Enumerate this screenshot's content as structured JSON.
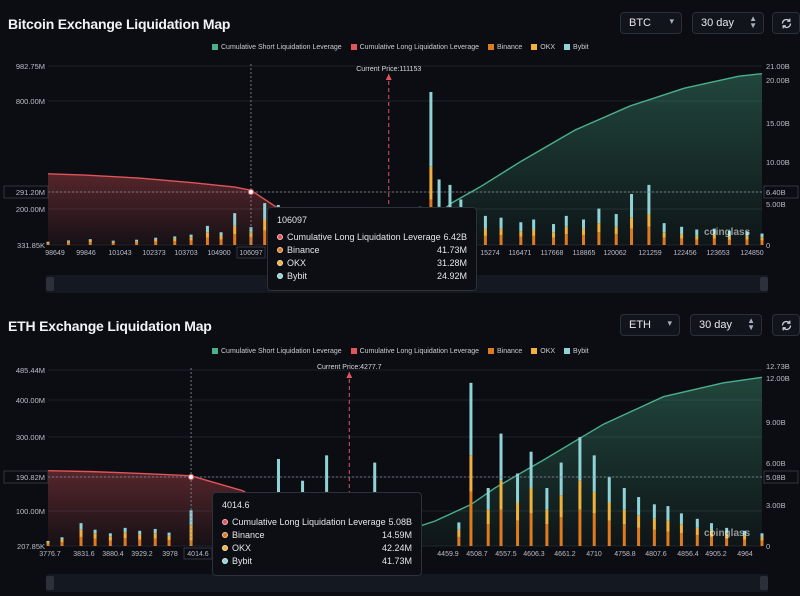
{
  "colors": {
    "short": "#49b08a",
    "long": "#e0545a",
    "binance": "#e07a1e",
    "okx": "#f2b13a",
    "bybit": "#8fd3d6",
    "background": "#0b0d12"
  },
  "btc": {
    "title": "Bitcoin Exchange Liquidation Map",
    "coin_select": "BTC",
    "period_select": "30 day",
    "refresh_icon": "refresh-icon",
    "legend": [
      "Cumulative Short Liquidation Leverage",
      "Cumulative Long Liquidation Leverage",
      "Binance",
      "OKX",
      "Bybit"
    ],
    "current_price_label": "Current Price:111153",
    "y_left_ticks": [
      "982.75M",
      "800.00M",
      "291.20M",
      "200.00M",
      "331.85K"
    ],
    "y_right_ticks": [
      "21.00B",
      "20.00B",
      "15.00B",
      "10.00B",
      "6.40B",
      "5.00B",
      "0"
    ],
    "x_ticks_left": [
      "98649",
      "99846",
      "101043",
      "102373",
      "103703",
      "104900",
      "106097"
    ],
    "x_ticks_right": [
      "15274",
      "116471",
      "117668",
      "118865",
      "120062",
      "121259",
      "122456",
      "123653",
      "124850"
    ],
    "crosshair_y_label_left": "291.20M",
    "crosshair_y_label_right": "6.40B",
    "tooltip": {
      "title": "106097",
      "rows": [
        {
          "label": "Cumulative Long Liquidation Leverage",
          "value": "6.42B"
        },
        {
          "label": "Binance",
          "value": "41.73M"
        },
        {
          "label": "OKX",
          "value": "31.28M"
        },
        {
          "label": "Bybit",
          "value": "24.92M"
        }
      ]
    },
    "watermark": "coinglass"
  },
  "eth": {
    "title": "ETH Exchange Liquidation Map",
    "coin_select": "ETH",
    "period_select": "30 day",
    "refresh_icon": "refresh-icon",
    "legend": [
      "Cumulative Short Liquidation Leverage",
      "Cumulative Long Liquidation Leverage",
      "Binance",
      "OKX",
      "Bybit"
    ],
    "current_price_label": "Current Price:4277.7",
    "y_left_ticks": [
      "485.44M",
      "400.00M",
      "300.00M",
      "190.82M",
      "100.00M",
      "207.85K"
    ],
    "y_right_ticks": [
      "12.73B",
      "12.00B",
      "9.00B",
      "6.00B",
      "5.08B",
      "3.00B",
      "0"
    ],
    "x_ticks_left": [
      "3776.7",
      "3831.6",
      "3880.4",
      "3929.2",
      "3978",
      "4014.6"
    ],
    "x_ticks_right": [
      "4459.9",
      "4508.7",
      "4557.5",
      "4606.3",
      "4661.2",
      "4710",
      "4758.8",
      "4807.6",
      "4856.4",
      "4905.2",
      "4964"
    ],
    "crosshair_y_label_left": "190.82M",
    "crosshair_y_label_right": "5.08B",
    "tooltip": {
      "title": "4014.6",
      "rows": [
        {
          "label": "Cumulative Long Liquidation Leverage",
          "value": "5.08B"
        },
        {
          "label": "Binance",
          "value": "14.59M"
        },
        {
          "label": "OKX",
          "value": "42.24M"
        },
        {
          "label": "Bybit",
          "value": "41.73M"
        }
      ]
    },
    "watermark": "coinglass"
  },
  "chart_data": [
    {
      "type": "bar",
      "title": "Bitcoin Exchange Liquidation Map",
      "x_range": [
        98649,
        124850
      ],
      "ylim_left": [
        0,
        982750000
      ],
      "ylim_right": [
        0,
        21000000000
      ],
      "current_price": 111153,
      "crosshair_x": 106097,
      "long_cumulative": {
        "name": "Cumulative Long Liquidation Leverage",
        "x": [
          98649,
          100000,
          102000,
          104000,
          105500,
          106097,
          107000,
          108500,
          110000,
          111153
        ],
        "y": [
          8350000000.0,
          8200000000.0,
          7850000000.0,
          7300000000.0,
          6800000000.0,
          6420000000.0,
          4500000000.0,
          2200000000.0,
          600000000.0,
          0
        ]
      },
      "short_cumulative": {
        "name": "Cumulative Short Liquidation Leverage",
        "x": [
          111153,
          112500,
          113500,
          114500,
          116000,
          118000,
          120000,
          122000,
          124000,
          124850
        ],
        "y": [
          0,
          2500000000.0,
          5000000000.0,
          6800000000.0,
          9800000000.0,
          13500000000.0,
          16300000000.0,
          18400000000.0,
          19800000000.0,
          20100000000.0
        ]
      },
      "bars": [
        {
          "x": 98649,
          "binance": 8000000.0,
          "okx": 6000000.0,
          "bybit": 4000000.0
        },
        {
          "x": 99400,
          "binance": 12000000.0,
          "okx": 8000000.0,
          "bybit": 5000000.0
        },
        {
          "x": 100200,
          "binance": 15000000.0,
          "okx": 10000000.0,
          "bybit": 7000000.0
        },
        {
          "x": 101043,
          "binance": 10000000.0,
          "okx": 8000000.0,
          "bybit": 6000000.0
        },
        {
          "x": 101900,
          "binance": 12000000.0,
          "okx": 9000000.0,
          "bybit": 8000000.0
        },
        {
          "x": 102600,
          "binance": 18000000.0,
          "okx": 12000000.0,
          "bybit": 10000000.0
        },
        {
          "x": 103300,
          "binance": 20000000.0,
          "okx": 15000000.0,
          "bybit": 12000000.0
        },
        {
          "x": 103900,
          "binance": 25000000.0,
          "okx": 18000000.0,
          "bybit": 14000000.0
        },
        {
          "x": 104500,
          "binance": 40000000.0,
          "okx": 30000000.0,
          "bybit": 35000000.0
        },
        {
          "x": 105000,
          "binance": 30000000.0,
          "okx": 22000000.0,
          "bybit": 18000000.0
        },
        {
          "x": 105500,
          "binance": 60000000.0,
          "okx": 45000000.0,
          "bybit": 70000000.0
        },
        {
          "x": 106097,
          "binance": 41730000.0,
          "okx": 31280000.0,
          "bybit": 24920000.0
        },
        {
          "x": 106600,
          "binance": 80000000.0,
          "okx": 60000000.0,
          "bybit": 90000000.0
        },
        {
          "x": 107100,
          "binance": 70000000.0,
          "okx": 50000000.0,
          "bybit": 100000000.0
        },
        {
          "x": 107600,
          "binance": 40000000.0,
          "okx": 30000000.0,
          "bybit": 50000000.0
        },
        {
          "x": 108300,
          "binance": 50000000.0,
          "okx": 35000000.0,
          "bybit": 60000000.0
        },
        {
          "x": 109000,
          "binance": 45000000.0,
          "okx": 30000000.0,
          "bybit": 55000000.0
        },
        {
          "x": 109700,
          "binance": 55000000.0,
          "okx": 40000000.0,
          "bybit": 60000000.0
        },
        {
          "x": 110400,
          "binance": 40000000.0,
          "okx": 25000000.0,
          "bybit": 40000000.0
        },
        {
          "x": 111700,
          "binance": 60000000.0,
          "okx": 40000000.0,
          "bybit": 50000000.0
        },
        {
          "x": 112300,
          "binance": 80000000.0,
          "okx": 60000000.0,
          "bybit": 70000000.0
        },
        {
          "x": 112700,
          "binance": 250000000.0,
          "okx": 180000000.0,
          "bybit": 410000000.0
        },
        {
          "x": 113000,
          "binance": 120000000.0,
          "okx": 90000000.0,
          "bybit": 150000000.0
        },
        {
          "x": 113400,
          "binance": 100000000.0,
          "okx": 70000000.0,
          "bybit": 160000000.0
        },
        {
          "x": 113800,
          "binance": 80000000.0,
          "okx": 60000000.0,
          "bybit": 110000000.0
        },
        {
          "x": 114200,
          "binance": 60000000.0,
          "okx": 40000000.0,
          "bybit": 80000000.0
        },
        {
          "x": 114700,
          "binance": 50000000.0,
          "okx": 40000000.0,
          "bybit": 70000000.0
        },
        {
          "x": 115274,
          "binance": 55000000.0,
          "okx": 35000000.0,
          "bybit": 60000000.0
        },
        {
          "x": 116000,
          "binance": 45000000.0,
          "okx": 30000000.0,
          "bybit": 50000000.0
        },
        {
          "x": 116471,
          "binance": 50000000.0,
          "okx": 35000000.0,
          "bybit": 55000000.0
        },
        {
          "x": 117200,
          "binance": 40000000.0,
          "okx": 30000000.0,
          "bybit": 45000000.0
        },
        {
          "x": 117668,
          "binance": 60000000.0,
          "okx": 40000000.0,
          "bybit": 60000000.0
        },
        {
          "x": 118300,
          "binance": 55000000.0,
          "okx": 35000000.0,
          "bybit": 50000000.0
        },
        {
          "x": 118865,
          "binance": 70000000.0,
          "okx": 50000000.0,
          "bybit": 80000000.0
        },
        {
          "x": 119500,
          "binance": 60000000.0,
          "okx": 40000000.0,
          "bybit": 70000000.0
        },
        {
          "x": 120062,
          "binance": 90000000.0,
          "okx": 60000000.0,
          "bybit": 130000000.0
        },
        {
          "x": 120700,
          "binance": 100000000.0,
          "okx": 70000000.0,
          "bybit": 160000000.0
        },
        {
          "x": 121259,
          "binance": 40000000.0,
          "okx": 30000000.0,
          "bybit": 50000000.0
        },
        {
          "x": 121900,
          "binance": 35000000.0,
          "okx": 25000000.0,
          "bybit": 40000000.0
        },
        {
          "x": 122456,
          "binance": 30000000.0,
          "okx": 20000000.0,
          "bybit": 35000000.0
        },
        {
          "x": 123100,
          "binance": 35000000.0,
          "okx": 25000000.0,
          "bybit": 30000000.0
        },
        {
          "x": 123653,
          "binance": 28000000.0,
          "okx": 20000000.0,
          "bybit": 30000000.0
        },
        {
          "x": 124300,
          "binance": 30000000.0,
          "okx": 20000000.0,
          "bybit": 25000000.0
        },
        {
          "x": 124850,
          "binance": 25000000.0,
          "okx": 18000000.0,
          "bybit": 20000000.0
        }
      ]
    },
    {
      "type": "bar",
      "title": "ETH Exchange Liquidation Map",
      "x_range": [
        3776.7,
        4964
      ],
      "ylim_left": [
        0,
        485440000
      ],
      "ylim_right": [
        0,
        12730000000
      ],
      "current_price": 4277.7,
      "crosshair_x": 4014.6,
      "long_cumulative": {
        "name": "Cumulative Long Liquidation Leverage",
        "x": [
          3776.7,
          3850,
          3930,
          3990,
          4014.6,
          4100,
          4180,
          4250,
          4277.7
        ],
        "y": [
          5450000000.0,
          5380000000.0,
          5250000000.0,
          5130000000.0,
          5080000000.0,
          4000000000.0,
          2000000000.0,
          500000000.0,
          0
        ]
      },
      "short_cumulative": {
        "name": "Cumulative Short Liquidation Leverage",
        "x": [
          4277.7,
          4350,
          4420,
          4480,
          4520,
          4600,
          4700,
          4800,
          4900,
          4964
        ],
        "y": [
          0,
          800000000.0,
          1800000000.0,
          3000000000.0,
          4200000000.0,
          6200000000.0,
          8800000000.0,
          10800000000.0,
          11800000000.0,
          12200000000.0
        ]
      },
      "bars": [
        {
          "x": 3776.7,
          "binance": 6000000.0,
          "okx": 5000000.0,
          "bybit": 3000000.0
        },
        {
          "x": 3800,
          "binance": 10000000.0,
          "okx": 8000000.0,
          "bybit": 6000000.0
        },
        {
          "x": 3831.6,
          "binance": 25000000.0,
          "okx": 20000000.0,
          "bybit": 18000000.0
        },
        {
          "x": 3855,
          "binance": 20000000.0,
          "okx": 15000000.0,
          "bybit": 10000000.0
        },
        {
          "x": 3880.4,
          "binance": 15000000.0,
          "okx": 12000000.0,
          "bybit": 8000000.0
        },
        {
          "x": 3905,
          "binance": 22000000.0,
          "okx": 16000000.0,
          "bybit": 12000000.0
        },
        {
          "x": 3929.2,
          "binance": 18000000.0,
          "okx": 14000000.0,
          "bybit": 10000000.0
        },
        {
          "x": 3955,
          "binance": 20000000.0,
          "okx": 15000000.0,
          "bybit": 12000000.0
        },
        {
          "x": 3978,
          "binance": 16000000.0,
          "okx": 12000000.0,
          "bybit": 9000000.0
        },
        {
          "x": 4014.6,
          "binance": 14590000.0,
          "okx": 42240000.0,
          "bybit": 41730000.0
        },
        {
          "x": 4060,
          "binance": 20000000.0,
          "okx": 15000000.0,
          "bybit": 15000000.0
        },
        {
          "x": 4120,
          "binance": 40000000.0,
          "okx": 30000000.0,
          "bybit": 50000000.0
        },
        {
          "x": 4160,
          "binance": 80000000.0,
          "okx": 60000000.0,
          "bybit": 100000000.0
        },
        {
          "x": 4200,
          "binance": 60000000.0,
          "okx": 40000000.0,
          "bybit": 80000000.0
        },
        {
          "x": 4240,
          "binance": 90000000.0,
          "okx": 60000000.0,
          "bybit": 100000000.0
        },
        {
          "x": 4320,
          "binance": 80000000.0,
          "okx": 60000000.0,
          "bybit": 90000000.0
        },
        {
          "x": 4380,
          "binance": 20000000.0,
          "okx": 15000000.0,
          "bybit": 15000000.0
        },
        {
          "x": 4459.9,
          "binance": 25000000.0,
          "okx": 20000000.0,
          "bybit": 20000000.0
        },
        {
          "x": 4480,
          "binance": 150000000.0,
          "okx": 100000000.0,
          "bybit": 200000000.0
        },
        {
          "x": 4508.7,
          "binance": 60000000.0,
          "okx": 40000000.0,
          "bybit": 60000000.0
        },
        {
          "x": 4530,
          "binance": 100000000.0,
          "okx": 80000000.0,
          "bybit": 130000000.0
        },
        {
          "x": 4557.5,
          "binance": 70000000.0,
          "okx": 50000000.0,
          "bybit": 80000000.0
        },
        {
          "x": 4580,
          "binance": 90000000.0,
          "okx": 70000000.0,
          "bybit": 100000000.0
        },
        {
          "x": 4606.3,
          "binance": 60000000.0,
          "okx": 40000000.0,
          "bybit": 60000000.0
        },
        {
          "x": 4630,
          "binance": 80000000.0,
          "okx": 60000000.0,
          "bybit": 90000000.0
        },
        {
          "x": 4661.2,
          "binance": 100000000.0,
          "okx": 80000000.0,
          "bybit": 120000000.0
        },
        {
          "x": 4685,
          "binance": 90000000.0,
          "okx": 60000000.0,
          "bybit": 100000000.0
        },
        {
          "x": 4710,
          "binance": 70000000.0,
          "okx": 50000000.0,
          "bybit": 70000000.0
        },
        {
          "x": 4735,
          "binance": 60000000.0,
          "okx": 40000000.0,
          "bybit": 60000000.0
        },
        {
          "x": 4758.8,
          "binance": 50000000.0,
          "okx": 35000000.0,
          "bybit": 50000000.0
        },
        {
          "x": 4785,
          "binance": 45000000.0,
          "okx": 30000000.0,
          "bybit": 40000000.0
        },
        {
          "x": 4807.6,
          "binance": 40000000.0,
          "okx": 30000000.0,
          "bybit": 40000000.0
        },
        {
          "x": 4830,
          "binance": 35000000.0,
          "okx": 25000000.0,
          "bybit": 30000000.0
        },
        {
          "x": 4856.4,
          "binance": 30000000.0,
          "okx": 20000000.0,
          "bybit": 25000000.0
        },
        {
          "x": 4880,
          "binance": 25000000.0,
          "okx": 18000000.0,
          "bybit": 20000000.0
        },
        {
          "x": 4905.2,
          "binance": 20000000.0,
          "okx": 15000000.0,
          "bybit": 15000000.0
        },
        {
          "x": 4935,
          "binance": 18000000.0,
          "okx": 12000000.0,
          "bybit": 12000000.0
        },
        {
          "x": 4964,
          "binance": 15000000.0,
          "okx": 10000000.0,
          "bybit": 10000000.0
        }
      ]
    }
  ]
}
